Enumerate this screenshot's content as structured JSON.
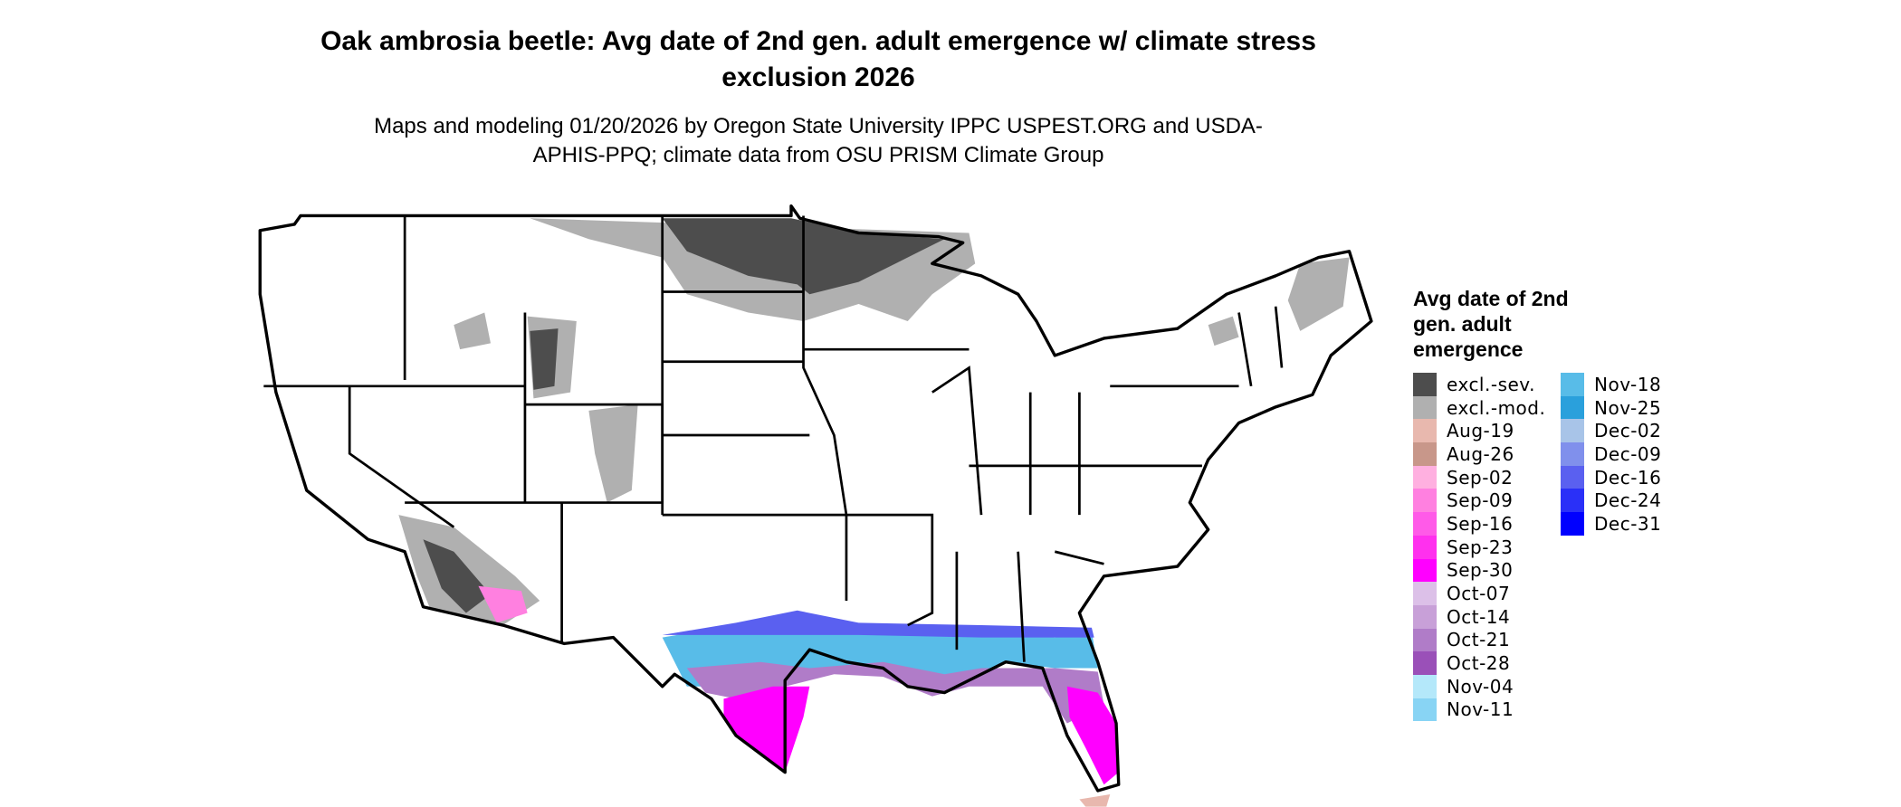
{
  "title": "Oak ambrosia beetle: Avg date of 2nd gen. adult emergence w/ climate stress exclusion 2026",
  "subtitle": "Maps and modeling 01/20/2026 by Oregon State University IPPC USPEST.ORG and USDA-APHIS-PPQ; climate data from OSU PRISM Climate Group",
  "legend": {
    "title": "Avg date of 2nd gen. adult emergence",
    "items": [
      {
        "label": "excl.-sev.",
        "color": "#4d4d4d"
      },
      {
        "label": "excl.-mod.",
        "color": "#b0b0b0"
      },
      {
        "label": "Aug-19",
        "color": "#e8b8ae"
      },
      {
        "label": "Aug-26",
        "color": "#c8978a"
      },
      {
        "label": "Sep-02",
        "color": "#ffb0e0"
      },
      {
        "label": "Sep-09",
        "color": "#ff80e0"
      },
      {
        "label": "Sep-16",
        "color": "#ff5ae8"
      },
      {
        "label": "Sep-23",
        "color": "#ff30ee"
      },
      {
        "label": "Sep-30",
        "color": "#ff00ff"
      },
      {
        "label": "Oct-07",
        "color": "#dcc0e8"
      },
      {
        "label": "Oct-14",
        "color": "#c8a0d8"
      },
      {
        "label": "Oct-21",
        "color": "#b07cc8"
      },
      {
        "label": "Oct-28",
        "color": "#9a50b8"
      },
      {
        "label": "Nov-04",
        "color": "#b4e8fa"
      },
      {
        "label": "Nov-11",
        "color": "#88d4f4"
      },
      {
        "label": "Nov-18",
        "color": "#58bce8"
      },
      {
        "label": "Nov-25",
        "color": "#2aa0dc"
      },
      {
        "label": "Dec-02",
        "color": "#a8c4e8"
      },
      {
        "label": "Dec-09",
        "color": "#8090ec"
      },
      {
        "label": "Dec-16",
        "color": "#5a60f0"
      },
      {
        "label": "Dec-24",
        "color": "#2a30f8"
      },
      {
        "label": "Dec-31",
        "color": "#0000ff"
      }
    ]
  }
}
